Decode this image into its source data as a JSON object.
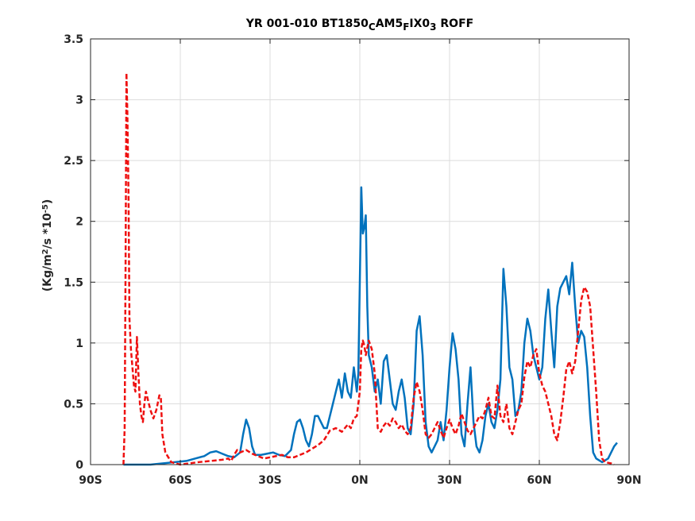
{
  "chart_data": {
    "type": "line",
    "title_parts": [
      {
        "text": "YR 001-010 BT1850"
      },
      {
        "text": "C",
        "sub": true
      },
      {
        "text": "AM5"
      },
      {
        "text": "F",
        "sub": true
      },
      {
        "text": "IX0"
      },
      {
        "text": "3",
        "sub": true
      },
      {
        "text": " ROFF"
      }
    ],
    "ylabel_parts": [
      {
        "text": "(Kg/m"
      },
      {
        "text": "2",
        "sup": true
      },
      {
        "text": "/s   *10"
      },
      {
        "text": "-5",
        "sup": true
      },
      {
        "text": ")"
      }
    ],
    "xlim": [
      -90,
      90
    ],
    "ylim": [
      0,
      3.5
    ],
    "xticks": [
      -90,
      -60,
      -30,
      0,
      30,
      60,
      90
    ],
    "xtick_labels": [
      "90S",
      "60S",
      "30S",
      "0N",
      "30N",
      "60N",
      "90N"
    ],
    "yticks": [
      0,
      0.5,
      1,
      1.5,
      2,
      2.5,
      3,
      3.5
    ],
    "ytick_labels": [
      "0",
      "0.5",
      "1",
      "1.5",
      "2",
      "2.5",
      "3",
      "3.5"
    ],
    "grid": true,
    "series": [
      {
        "color": "#0072bd",
        "style": "solid",
        "points": [
          [
            -79,
            0
          ],
          [
            -75,
            0
          ],
          [
            -70,
            0
          ],
          [
            -66,
            0.01
          ],
          [
            -62,
            0.02
          ],
          [
            -58,
            0.03
          ],
          [
            -55,
            0.05
          ],
          [
            -52,
            0.07
          ],
          [
            -50,
            0.1
          ],
          [
            -48,
            0.11
          ],
          [
            -46,
            0.09
          ],
          [
            -44,
            0.07
          ],
          [
            -42,
            0.06
          ],
          [
            -40,
            0.1
          ],
          [
            -39,
            0.25
          ],
          [
            -38,
            0.37
          ],
          [
            -37,
            0.3
          ],
          [
            -36,
            0.15
          ],
          [
            -35,
            0.08
          ],
          [
            -33,
            0.08
          ],
          [
            -31,
            0.09
          ],
          [
            -29,
            0.1
          ],
          [
            -27,
            0.08
          ],
          [
            -25,
            0.07
          ],
          [
            -23,
            0.12
          ],
          [
            -22,
            0.25
          ],
          [
            -21,
            0.35
          ],
          [
            -20,
            0.37
          ],
          [
            -19,
            0.3
          ],
          [
            -18,
            0.2
          ],
          [
            -17,
            0.15
          ],
          [
            -16,
            0.25
          ],
          [
            -15,
            0.4
          ],
          [
            -14,
            0.4
          ],
          [
            -13,
            0.35
          ],
          [
            -12,
            0.3
          ],
          [
            -11,
            0.3
          ],
          [
            -10,
            0.4
          ],
          [
            -9,
            0.5
          ],
          [
            -8,
            0.6
          ],
          [
            -7,
            0.7
          ],
          [
            -6,
            0.55
          ],
          [
            -5,
            0.75
          ],
          [
            -4,
            0.6
          ],
          [
            -3,
            0.55
          ],
          [
            -2,
            0.8
          ],
          [
            -1,
            0.6
          ],
          [
            -0.5,
            0.75
          ],
          [
            0,
            1.5
          ],
          [
            0.5,
            2.28
          ],
          [
            1,
            1.9
          ],
          [
            1.5,
            1.95
          ],
          [
            2,
            2.05
          ],
          [
            2.5,
            1.3
          ],
          [
            3,
            0.9
          ],
          [
            4,
            0.8
          ],
          [
            5,
            0.6
          ],
          [
            6,
            0.7
          ],
          [
            7,
            0.5
          ],
          [
            8,
            0.85
          ],
          [
            9,
            0.9
          ],
          [
            10,
            0.7
          ],
          [
            11,
            0.5
          ],
          [
            12,
            0.45
          ],
          [
            13,
            0.6
          ],
          [
            14,
            0.7
          ],
          [
            15,
            0.55
          ],
          [
            16,
            0.3
          ],
          [
            17,
            0.25
          ],
          [
            18,
            0.5
          ],
          [
            19,
            1.1
          ],
          [
            20,
            1.22
          ],
          [
            21,
            0.9
          ],
          [
            22,
            0.35
          ],
          [
            23,
            0.15
          ],
          [
            24,
            0.1
          ],
          [
            25,
            0.15
          ],
          [
            26,
            0.2
          ],
          [
            27,
            0.35
          ],
          [
            28,
            0.2
          ],
          [
            29,
            0.45
          ],
          [
            30,
            0.8
          ],
          [
            31,
            1.08
          ],
          [
            32,
            0.95
          ],
          [
            33,
            0.7
          ],
          [
            34,
            0.25
          ],
          [
            35,
            0.15
          ],
          [
            36,
            0.5
          ],
          [
            37,
            0.8
          ],
          [
            38,
            0.35
          ],
          [
            39,
            0.15
          ],
          [
            40,
            0.1
          ],
          [
            41,
            0.2
          ],
          [
            42,
            0.4
          ],
          [
            43,
            0.5
          ],
          [
            44,
            0.35
          ],
          [
            45,
            0.3
          ],
          [
            46,
            0.45
          ],
          [
            47,
            0.7
          ],
          [
            48,
            1.61
          ],
          [
            49,
            1.3
          ],
          [
            50,
            0.8
          ],
          [
            51,
            0.7
          ],
          [
            52,
            0.4
          ],
          [
            53,
            0.45
          ],
          [
            54,
            0.6
          ],
          [
            55,
            1.0
          ],
          [
            56,
            1.2
          ],
          [
            57,
            1.1
          ],
          [
            58,
            0.9
          ],
          [
            59,
            0.8
          ],
          [
            60,
            0.7
          ],
          [
            61,
            0.8
          ],
          [
            62,
            1.2
          ],
          [
            63,
            1.44
          ],
          [
            64,
            1.1
          ],
          [
            65,
            0.8
          ],
          [
            66,
            1.3
          ],
          [
            67,
            1.45
          ],
          [
            68,
            1.5
          ],
          [
            69,
            1.55
          ],
          [
            70,
            1.4
          ],
          [
            71,
            1.66
          ],
          [
            72,
            1.3
          ],
          [
            73,
            1.0
          ],
          [
            74,
            1.1
          ],
          [
            75,
            1.05
          ],
          [
            76,
            0.8
          ],
          [
            77,
            0.4
          ],
          [
            78,
            0.1
          ],
          [
            79,
            0.05
          ],
          [
            81,
            0.02
          ],
          [
            83,
            0.05
          ],
          [
            85,
            0.15
          ],
          [
            86,
            0.18
          ]
        ]
      },
      {
        "color": "#ee1111",
        "style": "dashed",
        "points": [
          [
            -79,
            0
          ],
          [
            -78.6,
            0.3
          ],
          [
            -78.3,
            1.6
          ],
          [
            -78,
            3.22
          ],
          [
            -77.7,
            2.9
          ],
          [
            -77.3,
            2.2
          ],
          [
            -77,
            1.2
          ],
          [
            -76.5,
            0.95
          ],
          [
            -76,
            0.8
          ],
          [
            -75.5,
            0.65
          ],
          [
            -75,
            0.6
          ],
          [
            -74.5,
            1.05
          ],
          [
            -74,
            0.75
          ],
          [
            -73.5,
            0.5
          ],
          [
            -73,
            0.4
          ],
          [
            -72.5,
            0.35
          ],
          [
            -72,
            0.5
          ],
          [
            -71.5,
            0.6
          ],
          [
            -71,
            0.55
          ],
          [
            -70,
            0.45
          ],
          [
            -69,
            0.38
          ],
          [
            -68,
            0.45
          ],
          [
            -67,
            0.57
          ],
          [
            -66.5,
            0.55
          ],
          [
            -66,
            0.25
          ],
          [
            -65,
            0.1
          ],
          [
            -63,
            0.02
          ],
          [
            -60,
            0
          ],
          [
            -57,
            0.01
          ],
          [
            -54,
            0.02
          ],
          [
            -50,
            0.03
          ],
          [
            -46,
            0.04
          ],
          [
            -44,
            0.05
          ],
          [
            -43,
            0.03
          ],
          [
            -42,
            0.08
          ],
          [
            -41,
            0.12
          ],
          [
            -40,
            0.1
          ],
          [
            -38,
            0.12
          ],
          [
            -36,
            0.09
          ],
          [
            -34,
            0.07
          ],
          [
            -32,
            0.05
          ],
          [
            -30,
            0.06
          ],
          [
            -28,
            0.07
          ],
          [
            -26,
            0.08
          ],
          [
            -24,
            0.06
          ],
          [
            -22,
            0.06
          ],
          [
            -20,
            0.08
          ],
          [
            -18,
            0.1
          ],
          [
            -16,
            0.13
          ],
          [
            -14,
            0.16
          ],
          [
            -12,
            0.2
          ],
          [
            -10,
            0.28
          ],
          [
            -8,
            0.3
          ],
          [
            -6,
            0.27
          ],
          [
            -4,
            0.33
          ],
          [
            -3,
            0.3
          ],
          [
            -2,
            0.38
          ],
          [
            -1,
            0.4
          ],
          [
            0,
            0.6
          ],
          [
            0.5,
            0.95
          ],
          [
            1,
            1.02
          ],
          [
            1.5,
            0.98
          ],
          [
            2,
            0.9
          ],
          [
            3,
            1.02
          ],
          [
            4,
            0.95
          ],
          [
            5,
            0.75
          ],
          [
            6,
            0.3
          ],
          [
            7,
            0.27
          ],
          [
            8,
            0.32
          ],
          [
            9,
            0.35
          ],
          [
            10,
            0.32
          ],
          [
            11,
            0.38
          ],
          [
            12,
            0.35
          ],
          [
            13,
            0.3
          ],
          [
            14,
            0.33
          ],
          [
            15,
            0.28
          ],
          [
            16,
            0.25
          ],
          [
            17,
            0.3
          ],
          [
            18,
            0.55
          ],
          [
            19,
            0.68
          ],
          [
            20,
            0.6
          ],
          [
            21,
            0.45
          ],
          [
            22,
            0.25
          ],
          [
            23,
            0.22
          ],
          [
            24,
            0.25
          ],
          [
            25,
            0.3
          ],
          [
            26,
            0.35
          ],
          [
            27,
            0.28
          ],
          [
            28,
            0.22
          ],
          [
            29,
            0.3
          ],
          [
            30,
            0.37
          ],
          [
            31,
            0.3
          ],
          [
            32,
            0.25
          ],
          [
            33,
            0.32
          ],
          [
            34,
            0.42
          ],
          [
            35,
            0.35
          ],
          [
            36,
            0.28
          ],
          [
            37,
            0.25
          ],
          [
            38,
            0.3
          ],
          [
            39,
            0.35
          ],
          [
            40,
            0.4
          ],
          [
            41,
            0.38
          ],
          [
            42,
            0.45
          ],
          [
            43,
            0.55
          ],
          [
            44,
            0.4
          ],
          [
            45,
            0.38
          ],
          [
            46,
            0.65
          ],
          [
            47,
            0.4
          ],
          [
            48,
            0.35
          ],
          [
            49,
            0.5
          ],
          [
            50,
            0.3
          ],
          [
            51,
            0.25
          ],
          [
            52,
            0.35
          ],
          [
            53,
            0.45
          ],
          [
            54,
            0.5
          ],
          [
            55,
            0.72
          ],
          [
            56,
            0.85
          ],
          [
            57,
            0.8
          ],
          [
            58,
            0.9
          ],
          [
            59,
            0.95
          ],
          [
            60,
            0.75
          ],
          [
            61,
            0.65
          ],
          [
            62,
            0.6
          ],
          [
            63,
            0.5
          ],
          [
            64,
            0.4
          ],
          [
            65,
            0.25
          ],
          [
            66,
            0.2
          ],
          [
            67,
            0.35
          ],
          [
            68,
            0.55
          ],
          [
            69,
            0.78
          ],
          [
            70,
            0.85
          ],
          [
            71,
            0.75
          ],
          [
            72,
            0.85
          ],
          [
            73,
            1.1
          ],
          [
            74,
            1.35
          ],
          [
            75,
            1.46
          ],
          [
            76,
            1.42
          ],
          [
            77,
            1.3
          ],
          [
            78,
            0.95
          ],
          [
            79,
            0.6
          ],
          [
            80,
            0.2
          ],
          [
            81,
            0.05
          ],
          [
            82,
            0.02
          ],
          [
            84,
            0.01
          ],
          [
            85,
            0
          ]
        ]
      }
    ]
  }
}
